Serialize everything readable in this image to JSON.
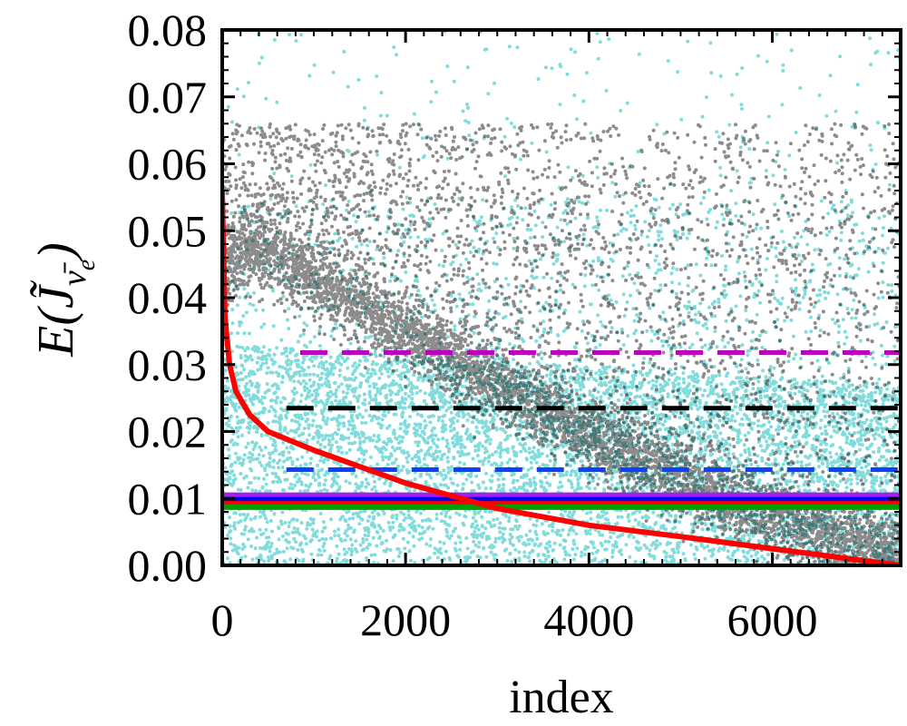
{
  "chart_data": {
    "type": "scatter",
    "xlabel": "index",
    "ylabel": {
      "text": "E(J̃",
      "subscript": "ν̄",
      "sub_subscript": "e",
      "close": ")"
    },
    "xlim": [
      0,
      7400
    ],
    "ylim": [
      0.0,
      0.08
    ],
    "x_ticks": [
      0,
      2000,
      4000,
      6000
    ],
    "x_tick_labels": [
      "0",
      "2000",
      "4000",
      "6000"
    ],
    "y_ticks": [
      0.0,
      0.01,
      0.02,
      0.03,
      0.04,
      0.05,
      0.06,
      0.07,
      0.08
    ],
    "y_tick_labels": [
      "0.00",
      "0.01",
      "0.02",
      "0.03",
      "0.04",
      "0.05",
      "0.06",
      "0.07",
      "0.08"
    ],
    "grid": false,
    "series": [
      {
        "kind": "scatter",
        "color": "#2ec4c4",
        "n_points": 7400,
        "distribution": "dense cloud from 0.00 to ~0.03 across all indices, thinning upward to 0.08"
      },
      {
        "kind": "scatter",
        "color": "#000000",
        "n_points": 7400,
        "distribution": "band descending from ~0.052 at index 0 to ~0.002 at 7400, plus sparse points up to ~0.067"
      },
      {
        "kind": "line",
        "color": "#ff0000",
        "x": [
          0,
          30,
          80,
          150,
          300,
          500,
          1000,
          2000,
          3000,
          4000,
          5000,
          6000,
          7000,
          7400
        ],
        "y": [
          0.056,
          0.037,
          0.03,
          0.026,
          0.0225,
          0.02,
          0.0172,
          0.0123,
          0.0085,
          0.006,
          0.0043,
          0.0025,
          0.0007,
          0.0
        ]
      }
    ],
    "hlines": [
      {
        "y": 0.0318,
        "color": "#bb00bb",
        "style": "dashed",
        "xmin": 850
      },
      {
        "y": 0.0235,
        "color": "#000000",
        "style": "dashed",
        "xmin": 700
      },
      {
        "y": 0.0143,
        "color": "#1040ff",
        "style": "dashed",
        "xmin": 700
      },
      {
        "y": 0.0105,
        "color": "#a020f0",
        "style": "solid",
        "xmin": 0
      },
      {
        "y": 0.0098,
        "color": "#0000ee",
        "style": "solid",
        "xmin": 0
      },
      {
        "y": 0.0092,
        "color": "#ff0000",
        "style": "solid",
        "xmin": 0
      },
      {
        "y": 0.0087,
        "color": "#00a000",
        "style": "solid",
        "xmin": 0
      }
    ]
  }
}
